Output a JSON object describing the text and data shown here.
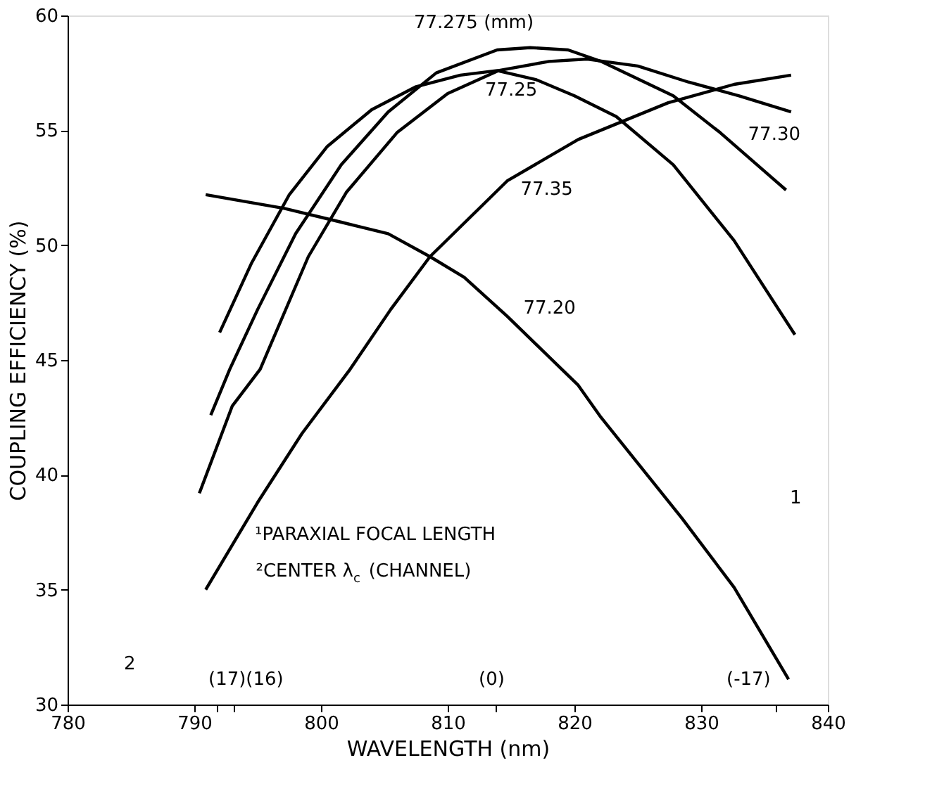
{
  "chart_data": {
    "type": "line",
    "xlabel": "WAVELENGTH (nm)",
    "ylabel": "COUPLING EFFICIENCY (%)",
    "xlim": [
      780,
      840
    ],
    "xticks": [
      780,
      790,
      {
        "value": 791.8,
        "label": null
      },
      {
        "value": 793.1,
        "label": null
      },
      800,
      810,
      {
        "value": 813.8,
        "label": null
      },
      820,
      830,
      {
        "value": 835.9,
        "label": null
      },
      840
    ],
    "ylim": [
      30,
      60
    ],
    "yticks": [
      30,
      35,
      40,
      45,
      50,
      55,
      60
    ],
    "grid": false,
    "line_style": "solid",
    "marker": "none",
    "series": [
      {
        "name": "77.20",
        "color": "#000000",
        "x": [
          790.9,
          797.1,
          801.6,
          805.3,
          808.6,
          811.3,
          814.7,
          820.3,
          822.1,
          828.5,
          832.6,
          836.9
        ],
        "values": [
          52.2,
          51.6,
          51.0,
          50.5,
          49.5,
          48.6,
          46.9,
          43.9,
          42.5,
          38.1,
          35.1,
          31.1
        ]
      },
      {
        "name": "77.25",
        "color": "#000000",
        "x": [
          792.0,
          794.5,
          797.5,
          800.5,
          804.0,
          807.5,
          811.0,
          813.9,
          817.0,
          820.0,
          823.3,
          827.8,
          832.6,
          837.4
        ],
        "values": [
          46.2,
          49.2,
          52.2,
          54.3,
          55.9,
          56.9,
          57.4,
          57.6,
          57.2,
          56.5,
          55.6,
          53.5,
          50.2,
          46.1
        ]
      },
      {
        "name": "77.275 (mm)",
        "color": "#000000",
        "x": [
          791.3,
          792.8,
          795.0,
          798.0,
          801.6,
          805.3,
          809.1,
          813.9,
          816.5,
          819.5,
          822.1,
          827.8,
          831.5,
          836.7
        ],
        "values": [
          42.6,
          44.6,
          47.2,
          50.5,
          53.5,
          55.8,
          57.5,
          58.5,
          58.6,
          58.5,
          58.0,
          56.5,
          54.9,
          52.4
        ]
      },
      {
        "name": "77.30",
        "color": "#000000",
        "x": [
          790.4,
          793.0,
          795.2,
          799.0,
          802.0,
          806.0,
          810.0,
          814.0,
          818.0,
          821.0,
          825.0,
          829.0,
          833.0,
          837.1
        ],
        "values": [
          39.2,
          43.0,
          44.6,
          49.5,
          52.3,
          54.9,
          56.6,
          57.6,
          58.0,
          58.1,
          57.8,
          57.1,
          56.5,
          55.8
        ]
      },
      {
        "name": "77.35",
        "color": "#000000",
        "x": [
          790.9,
          795.0,
          798.5,
          802.3,
          805.5,
          808.6,
          814.7,
          820.3,
          827.4,
          832.6,
          837.1
        ],
        "values": [
          35.0,
          38.8,
          41.8,
          44.6,
          47.2,
          49.5,
          52.8,
          54.6,
          56.2,
          57.0,
          57.4
        ]
      }
    ],
    "annotations": [
      "1",
      "2",
      "(17)(16)",
      "(0)",
      "(-17)",
      "¹PARAXIAL FOCAL LENGTH",
      "²CENTER λ$_{c}$ (CHANNEL)"
    ]
  }
}
